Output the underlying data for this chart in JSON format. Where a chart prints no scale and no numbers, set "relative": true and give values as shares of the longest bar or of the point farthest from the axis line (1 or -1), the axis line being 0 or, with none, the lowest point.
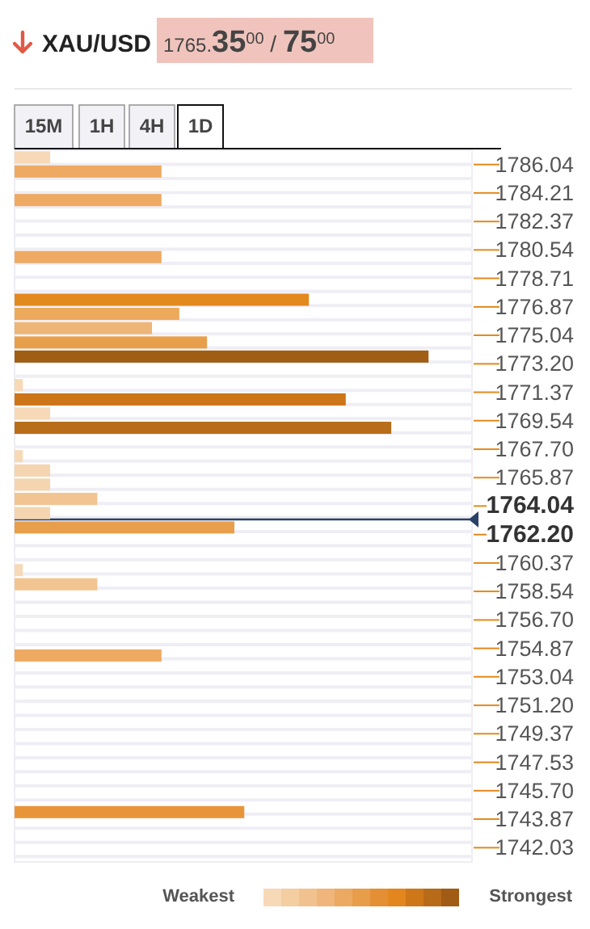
{
  "chart_data": {
    "type": "bar",
    "orientation": "horizontal",
    "relative": true,
    "title": "XAU/USD",
    "subtitle": "1765.35$^{00}$ / 75$^{00}$",
    "x": [
      1786.5,
      1785.59,
      1783.75,
      1780.08,
      1777.33,
      1776.42,
      1775.5,
      1774.58,
      1773.67,
      1771.83,
      1770.91,
      1770.0,
      1769.08,
      1767.25,
      1766.33,
      1765.42,
      1764.5,
      1763.58,
      1762.66,
      1759.91,
      1759.0,
      1754.41,
      1744.32
    ],
    "values": [
      0.086,
      0.355,
      0.355,
      0.355,
      0.711,
      0.398,
      0.332,
      0.465,
      1,
      0.02,
      0.8,
      0.086,
      0.91,
      0.02,
      0.086,
      0.086,
      0.2,
      0.086,
      0.531,
      0.02,
      0.2,
      0.355,
      0.555
    ],
    "colors": [
      "#f7d9b7",
      "#eeaa62",
      "#eeaa62",
      "#eeaa62",
      "#e38a1e",
      "#eda95c",
      "#edb577",
      "#e89f4c",
      "#a05e14",
      "#f7d9b7",
      "#cc7519",
      "#f7d9b7",
      "#b86d1a",
      "#f7d9b7",
      "#f5d5b0",
      "#f5d5b0",
      "#f2c491",
      "#f5d5b0",
      "#e89f4c",
      "#f7d9b7",
      "#f2c491",
      "#eeaa62",
      "#e8953a"
    ],
    "ylim": [
      1741.11,
      1786.96
    ],
    "yticks": [
      1786.04,
      1784.21,
      1782.37,
      1780.54,
      1778.71,
      1776.87,
      1775.04,
      {
        "value": 1773.2,
        "label": "1773.20"
      },
      1771.37,
      1769.54,
      {
        "value": 1767.7,
        "label": "1767.70"
      },
      1765.87,
      1764.04,
      {
        "value": 1762.2,
        "label": "1762.20"
      },
      1760.37,
      1758.54,
      {
        "value": 1756.7,
        "label": "1756.70"
      },
      1754.87,
      1753.04,
      {
        "value": 1751.2,
        "label": "1751.20"
      },
      1749.37,
      1747.53,
      {
        "value": 1745.7,
        "label": "1745.70"
      },
      1743.87,
      1742.03
    ],
    "ref_lines": [
      {
        "axis": "y",
        "value": 1763.18,
        "color": "#2b4066"
      }
    ],
    "grid": true,
    "annotations": [
      "15M",
      "1H",
      "4H",
      "1D",
      "Weakest",
      "Strongest"
    ]
  }
}
